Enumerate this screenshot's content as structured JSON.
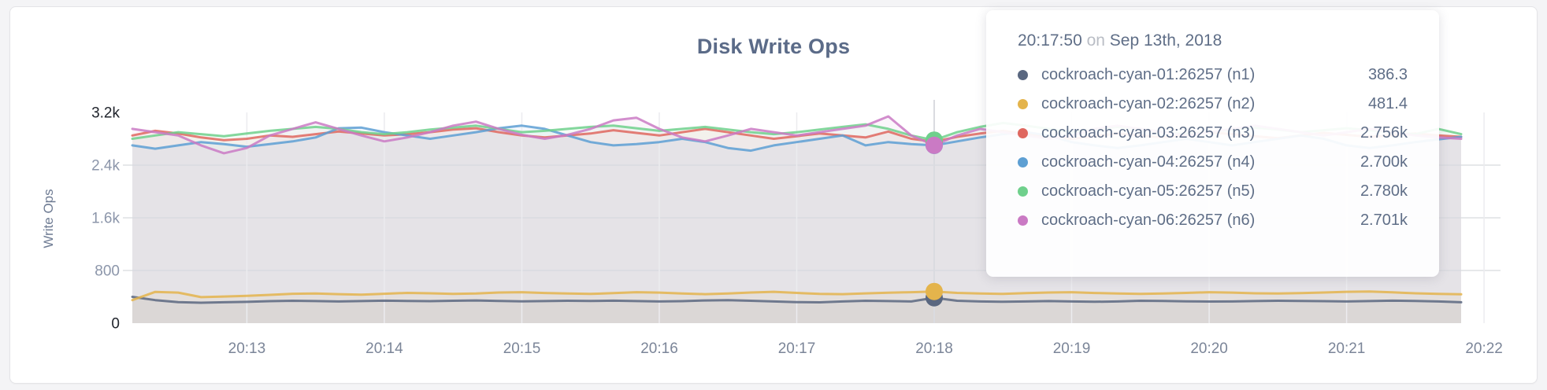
{
  "chart_data": {
    "type": "line",
    "title": "Disk Write Ops",
    "ylabel": "Write Ops",
    "xlabel": "",
    "grid": true,
    "ylim": [
      0,
      3200
    ],
    "y_ticks": [
      {
        "value": 0,
        "label": "0",
        "strong": true,
        "gridline": false
      },
      {
        "value": 800,
        "label": "800",
        "strong": false,
        "gridline": true
      },
      {
        "value": 1600,
        "label": "1.6k",
        "strong": false,
        "gridline": true
      },
      {
        "value": 2400,
        "label": "2.4k",
        "strong": false,
        "gridline": true
      },
      {
        "value": 3200,
        "label": "3.2k",
        "strong": true,
        "gridline": false
      }
    ],
    "x_tick_labels": [
      "20:13",
      "20:14",
      "20:15",
      "20:16",
      "20:17",
      "20:18",
      "20:19",
      "20:20",
      "20:21",
      "20:22"
    ],
    "x_start_time": "20:12:10",
    "x_interval_seconds": 10,
    "series": [
      {
        "id": "n1",
        "name": "cockroach-cyan-01:26257 (n1)",
        "color": "#5a6780",
        "values": [
          400,
          350,
          320,
          310,
          318,
          324,
          334,
          340,
          336,
          330,
          336,
          342,
          338,
          334,
          340,
          345,
          338,
          332,
          335,
          340,
          338,
          342,
          336,
          330,
          334,
          345,
          350,
          340,
          330,
          320,
          316,
          330,
          340,
          335,
          330,
          386,
          340,
          330,
          325,
          330,
          335,
          330,
          325,
          330,
          340,
          338,
          332,
          328,
          330,
          335,
          340,
          338,
          334,
          330,
          335,
          342,
          338,
          330,
          318
        ]
      },
      {
        "id": "n2",
        "name": "cockroach-cyan-02:26257 (n2)",
        "color": "#e4b44c",
        "values": [
          350,
          475,
          465,
          395,
          405,
          415,
          430,
          446,
          450,
          440,
          434,
          446,
          460,
          454,
          444,
          450,
          466,
          470,
          458,
          450,
          444,
          456,
          470,
          464,
          450,
          440,
          450,
          466,
          476,
          460,
          444,
          440,
          452,
          462,
          470,
          481,
          460,
          450,
          444,
          456,
          466,
          470,
          458,
          450,
          444,
          450,
          460,
          470,
          464,
          454,
          450,
          456,
          466,
          476,
          480,
          468,
          454,
          444,
          438
        ]
      },
      {
        "id": "n3",
        "name": "cockroach-cyan-03:26257 (n3)",
        "color": "#df675f",
        "values": [
          2850,
          2920,
          2880,
          2820,
          2780,
          2800,
          2850,
          2830,
          2870,
          2910,
          2880,
          2850,
          2870,
          2900,
          2940,
          2960,
          2900,
          2850,
          2820,
          2850,
          2880,
          2930,
          2890,
          2850,
          2900,
          2950,
          2900,
          2850,
          2800,
          2840,
          2880,
          2850,
          2820,
          2910,
          2800,
          2756,
          2830,
          2880,
          2920,
          2870,
          2830,
          2800,
          2840,
          2880,
          2850,
          2820,
          2850,
          2900,
          2870,
          2840,
          2810,
          2850,
          2890,
          2860,
          2830,
          2850,
          2880,
          2850,
          2830
        ]
      },
      {
        "id": "n4",
        "name": "cockroach-cyan-04:26257 (n4)",
        "color": "#5d9fd3",
        "values": [
          2700,
          2650,
          2700,
          2750,
          2720,
          2680,
          2720,
          2760,
          2820,
          2960,
          2970,
          2900,
          2850,
          2800,
          2850,
          2900,
          2960,
          3000,
          2950,
          2850,
          2750,
          2700,
          2720,
          2750,
          2800,
          2750,
          2660,
          2620,
          2700,
          2750,
          2800,
          2850,
          2700,
          2750,
          2720,
          2700,
          2760,
          2820,
          2870,
          2900,
          2850,
          2750,
          2700,
          2660,
          2700,
          2750,
          2800,
          2750,
          2700,
          2750,
          2800,
          2850,
          2800,
          2700,
          2660,
          2700,
          2750,
          2790,
          2830
        ]
      },
      {
        "id": "n5",
        "name": "cockroach-cyan-05:26257 (n5)",
        "color": "#6fd08c",
        "values": [
          2800,
          2850,
          2900,
          2870,
          2840,
          2880,
          2920,
          2950,
          2980,
          2950,
          2900,
          2870,
          2900,
          2940,
          2970,
          3000,
          2950,
          2900,
          2920,
          2950,
          2980,
          3000,
          2960,
          2920,
          2950,
          2980,
          2940,
          2900,
          2870,
          2900,
          2940,
          2980,
          3020,
          2950,
          2850,
          2780,
          2900,
          2980,
          3040,
          3000,
          2950,
          2900,
          2940,
          2980,
          2950,
          2900,
          2870,
          2900,
          2940,
          2970,
          2940,
          2900,
          2930,
          2960,
          2930,
          2900,
          2870,
          2950,
          2870
        ]
      },
      {
        "id": "n6",
        "name": "cockroach-cyan-06:26257 (n6)",
        "color": "#ca7ac4",
        "values": [
          2950,
          2900,
          2850,
          2700,
          2580,
          2660,
          2850,
          2950,
          3050,
          2950,
          2850,
          2760,
          2820,
          2900,
          3000,
          3060,
          2950,
          2860,
          2800,
          2860,
          2950,
          3080,
          3120,
          2950,
          2820,
          2760,
          2850,
          2950,
          2900,
          2850,
          2900,
          2950,
          3000,
          3140,
          2850,
          2701,
          2850,
          2950,
          2900,
          2850,
          2800,
          2850,
          2950,
          3000,
          2950,
          2900,
          2850,
          2900,
          2950,
          3000,
          2950,
          2900,
          2850,
          2900,
          2950,
          2900,
          2850,
          2820,
          2800
        ]
      }
    ],
    "hover": {
      "index": 35,
      "time": "20:17:50"
    }
  },
  "tooltip": {
    "time": "20:17:50",
    "separator": "on",
    "date": "Sep 13th, 2018",
    "rows": [
      {
        "label": "cockroach-cyan-01:26257 (n1)",
        "value": "386.3",
        "color": "#5a6780"
      },
      {
        "label": "cockroach-cyan-02:26257 (n2)",
        "value": "481.4",
        "color": "#e4b44c"
      },
      {
        "label": "cockroach-cyan-03:26257 (n3)",
        "value": "2.756k",
        "color": "#df675f"
      },
      {
        "label": "cockroach-cyan-04:26257 (n4)",
        "value": "2.700k",
        "color": "#5d9fd3"
      },
      {
        "label": "cockroach-cyan-05:26257 (n5)",
        "value": "2.780k",
        "color": "#6fd08c"
      },
      {
        "label": "cockroach-cyan-06:26257 (n6)",
        "value": "2.701k",
        "color": "#ca7ac4"
      }
    ]
  },
  "colors": {
    "card_background": "#ffffff",
    "page_background": "#f4f4f6",
    "area_fill_composite": "#e2e2e6",
    "h_gridline": "#d8d9de",
    "v_gridline": "#ececef",
    "hover_line": "#dadbe0",
    "title_text": "#5b6b88",
    "axis_text": "#8c96aa",
    "axis_text_strong": "#20242c"
  }
}
